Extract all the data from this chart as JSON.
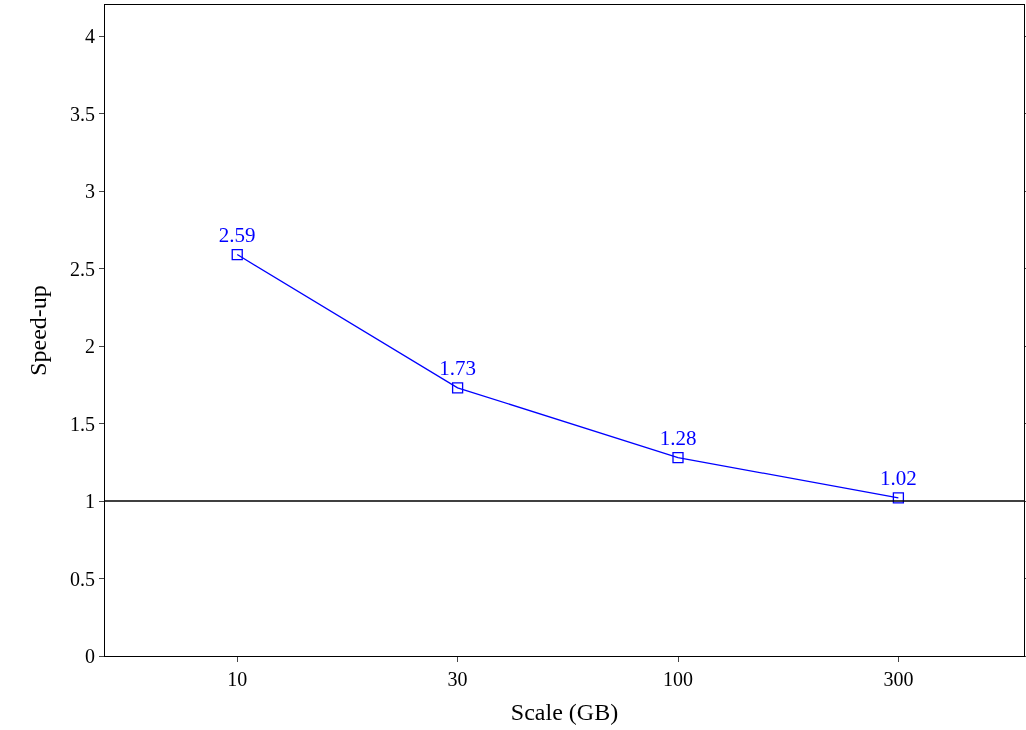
{
  "chart_data": {
    "type": "line",
    "xlabel": "Scale (GB)",
    "ylabel": "Speed-up",
    "categories": [
      "10",
      "30",
      "100",
      "300"
    ],
    "series": [
      {
        "color": "#0000ff",
        "values": [
          2.59,
          1.73,
          1.28,
          1.02
        ]
      }
    ],
    "ylim": [
      0,
      4.2
    ],
    "yticks": [
      0,
      0.5,
      1,
      1.5,
      2,
      2.5,
      3,
      3.5,
      4
    ],
    "ref_lines": [
      {
        "axis": "y",
        "value": 1,
        "color": "#000000"
      }
    ],
    "data_labels": true,
    "marker": "square",
    "line_style": "solid"
  }
}
